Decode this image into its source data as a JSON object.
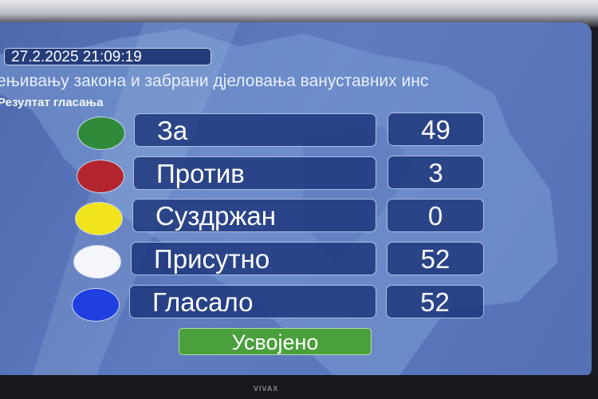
{
  "header": {
    "datetime": "27.2.2025 21:09:19",
    "title": "ењивању закона и забрани дјеловања вануставних инс",
    "subtitle": "Резултат гласања"
  },
  "results": [
    {
      "label": "За",
      "value": "49",
      "color": "#2f8a3a"
    },
    {
      "label": "Против",
      "value": "3",
      "color": "#b3252e"
    },
    {
      "label": "Суздржан",
      "value": "0",
      "color": "#f0e51d"
    },
    {
      "label": "Присутно",
      "value": "52",
      "color": "#f4f6fb"
    },
    {
      "label": "Гласало",
      "value": "52",
      "color": "#1f3fe0"
    }
  ],
  "outcome": {
    "label": "Усвојено",
    "color": "#4aa03c"
  },
  "tv_brand": "VIVAX"
}
